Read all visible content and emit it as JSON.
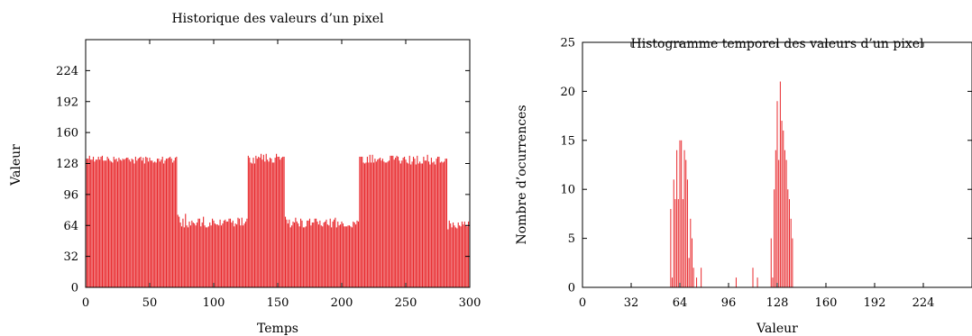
{
  "chart_data": [
    {
      "type": "bar",
      "title": "Historique des valeurs d’un pixel",
      "xlabel": "Temps",
      "ylabel": "Valeur",
      "xlim": [
        0,
        300
      ],
      "ylim": [
        0,
        256
      ],
      "xticks": [
        0,
        50,
        100,
        150,
        200,
        250,
        300
      ],
      "yticks": [
        0,
        32,
        64,
        96,
        128,
        160,
        192,
        224
      ],
      "bar_color": "#e8282c",
      "segments": [
        {
          "from": 0,
          "to": 72,
          "level": 132
        },
        {
          "from": 72,
          "to": 127,
          "level": 68
        },
        {
          "from": 127,
          "to": 156,
          "level": 134
        },
        {
          "from": 156,
          "to": 214,
          "level": 67
        },
        {
          "from": 214,
          "to": 283,
          "level": 132
        },
        {
          "from": 283,
          "to": 300,
          "level": 64
        }
      ],
      "values": [
        133,
        133,
        133,
        136,
        132,
        132,
        135,
        130,
        132,
        132,
        135,
        132,
        135,
        136,
        131,
        131,
        131,
        135,
        133,
        131,
        130,
        129,
        135,
        132,
        133,
        130,
        134,
        132,
        131,
        133,
        132,
        133,
        134,
        134,
        132,
        130,
        133,
        132,
        128,
        135,
        131,
        133,
        134,
        135,
        131,
        134,
        128,
        135,
        134,
        130,
        134,
        131,
        131,
        129,
        130,
        129,
        133,
        133,
        130,
        132,
        135,
        128,
        131,
        133,
        133,
        134,
        135,
        133,
        129,
        131,
        134,
        135,
        75,
        73,
        67,
        63,
        71,
        62,
        76,
        64,
        62,
        68,
        64,
        69,
        67,
        66,
        64,
        67,
        71,
        71,
        63,
        67,
        73,
        64,
        62,
        62,
        63,
        67,
        64,
        71,
        69,
        66,
        65,
        65,
        64,
        70,
        64,
        66,
        69,
        70,
        68,
        68,
        71,
        71,
        67,
        69,
        63,
        66,
        65,
        72,
        71,
        64,
        72,
        64,
        66,
        68,
        71,
        136,
        134,
        129,
        128,
        134,
        128,
        136,
        133,
        135,
        134,
        138,
        132,
        137,
        130,
        138,
        132,
        130,
        134,
        133,
        129,
        129,
        134,
        138,
        135,
        135,
        132,
        134,
        135,
        135,
        73,
        70,
        66,
        70,
        62,
        64,
        68,
        67,
        72,
        68,
        66,
        63,
        71,
        69,
        62,
        62,
        63,
        69,
        69,
        71,
        64,
        67,
        67,
        71,
        71,
        68,
        65,
        69,
        64,
        63,
        67,
        68,
        70,
        65,
        64,
        71,
        62,
        68,
        70,
        72,
        62,
        68,
        64,
        65,
        68,
        66,
        63,
        63,
        63,
        64,
        64,
        63,
        62,
        68,
        67,
        65,
        69,
        68,
        135,
        135,
        135,
        129,
        128,
        129,
        135,
        129,
        137,
        129,
        137,
        129,
        133,
        130,
        132,
        133,
        134,
        131,
        133,
        130,
        129,
        129,
        130,
        131,
        136,
        136,
        136,
        132,
        134,
        136,
        135,
        131,
        128,
        131,
        134,
        135,
        132,
        129,
        128,
        136,
        127,
        130,
        135,
        133,
        127,
        136,
        128,
        130,
        128,
        128,
        135,
        131,
        131,
        137,
        130,
        127,
        134,
        129,
        130,
        127,
        133,
        135,
        135,
        129,
        130,
        129,
        130,
        133,
        133,
        60,
        69,
        66,
        62,
        67,
        64,
        62,
        61,
        67,
        64,
        63,
        68,
        65,
        68,
        64,
        63,
        68
      ]
    },
    {
      "type": "bar",
      "title": "Histogramme temporel des valeurs d’un pixel",
      "xlabel": "Valeur",
      "ylabel": "Nombre d’ocurrences",
      "xlim": [
        0,
        256
      ],
      "ylim": [
        0,
        25
      ],
      "xticks": [
        0,
        32,
        64,
        96,
        128,
        160,
        192,
        224
      ],
      "yticks": [
        0,
        5,
        10,
        15,
        20,
        25
      ],
      "bar_color": "#e8282c",
      "x": [
        58,
        59,
        60,
        61,
        62,
        63,
        64,
        65,
        66,
        67,
        68,
        69,
        70,
        71,
        72,
        73,
        75,
        78,
        101,
        112,
        115,
        124,
        125,
        126,
        127,
        128,
        129,
        130,
        131,
        132,
        133,
        134,
        135,
        136,
        137,
        138
      ],
      "values": [
        8,
        1,
        11,
        9,
        14,
        9,
        15,
        15,
        9,
        14,
        13,
        11,
        3,
        7,
        5,
        2,
        1,
        2,
        1,
        2,
        1,
        5,
        1,
        10,
        14,
        19,
        13,
        21,
        17,
        16,
        14,
        13,
        10,
        9,
        7,
        5
      ]
    }
  ]
}
